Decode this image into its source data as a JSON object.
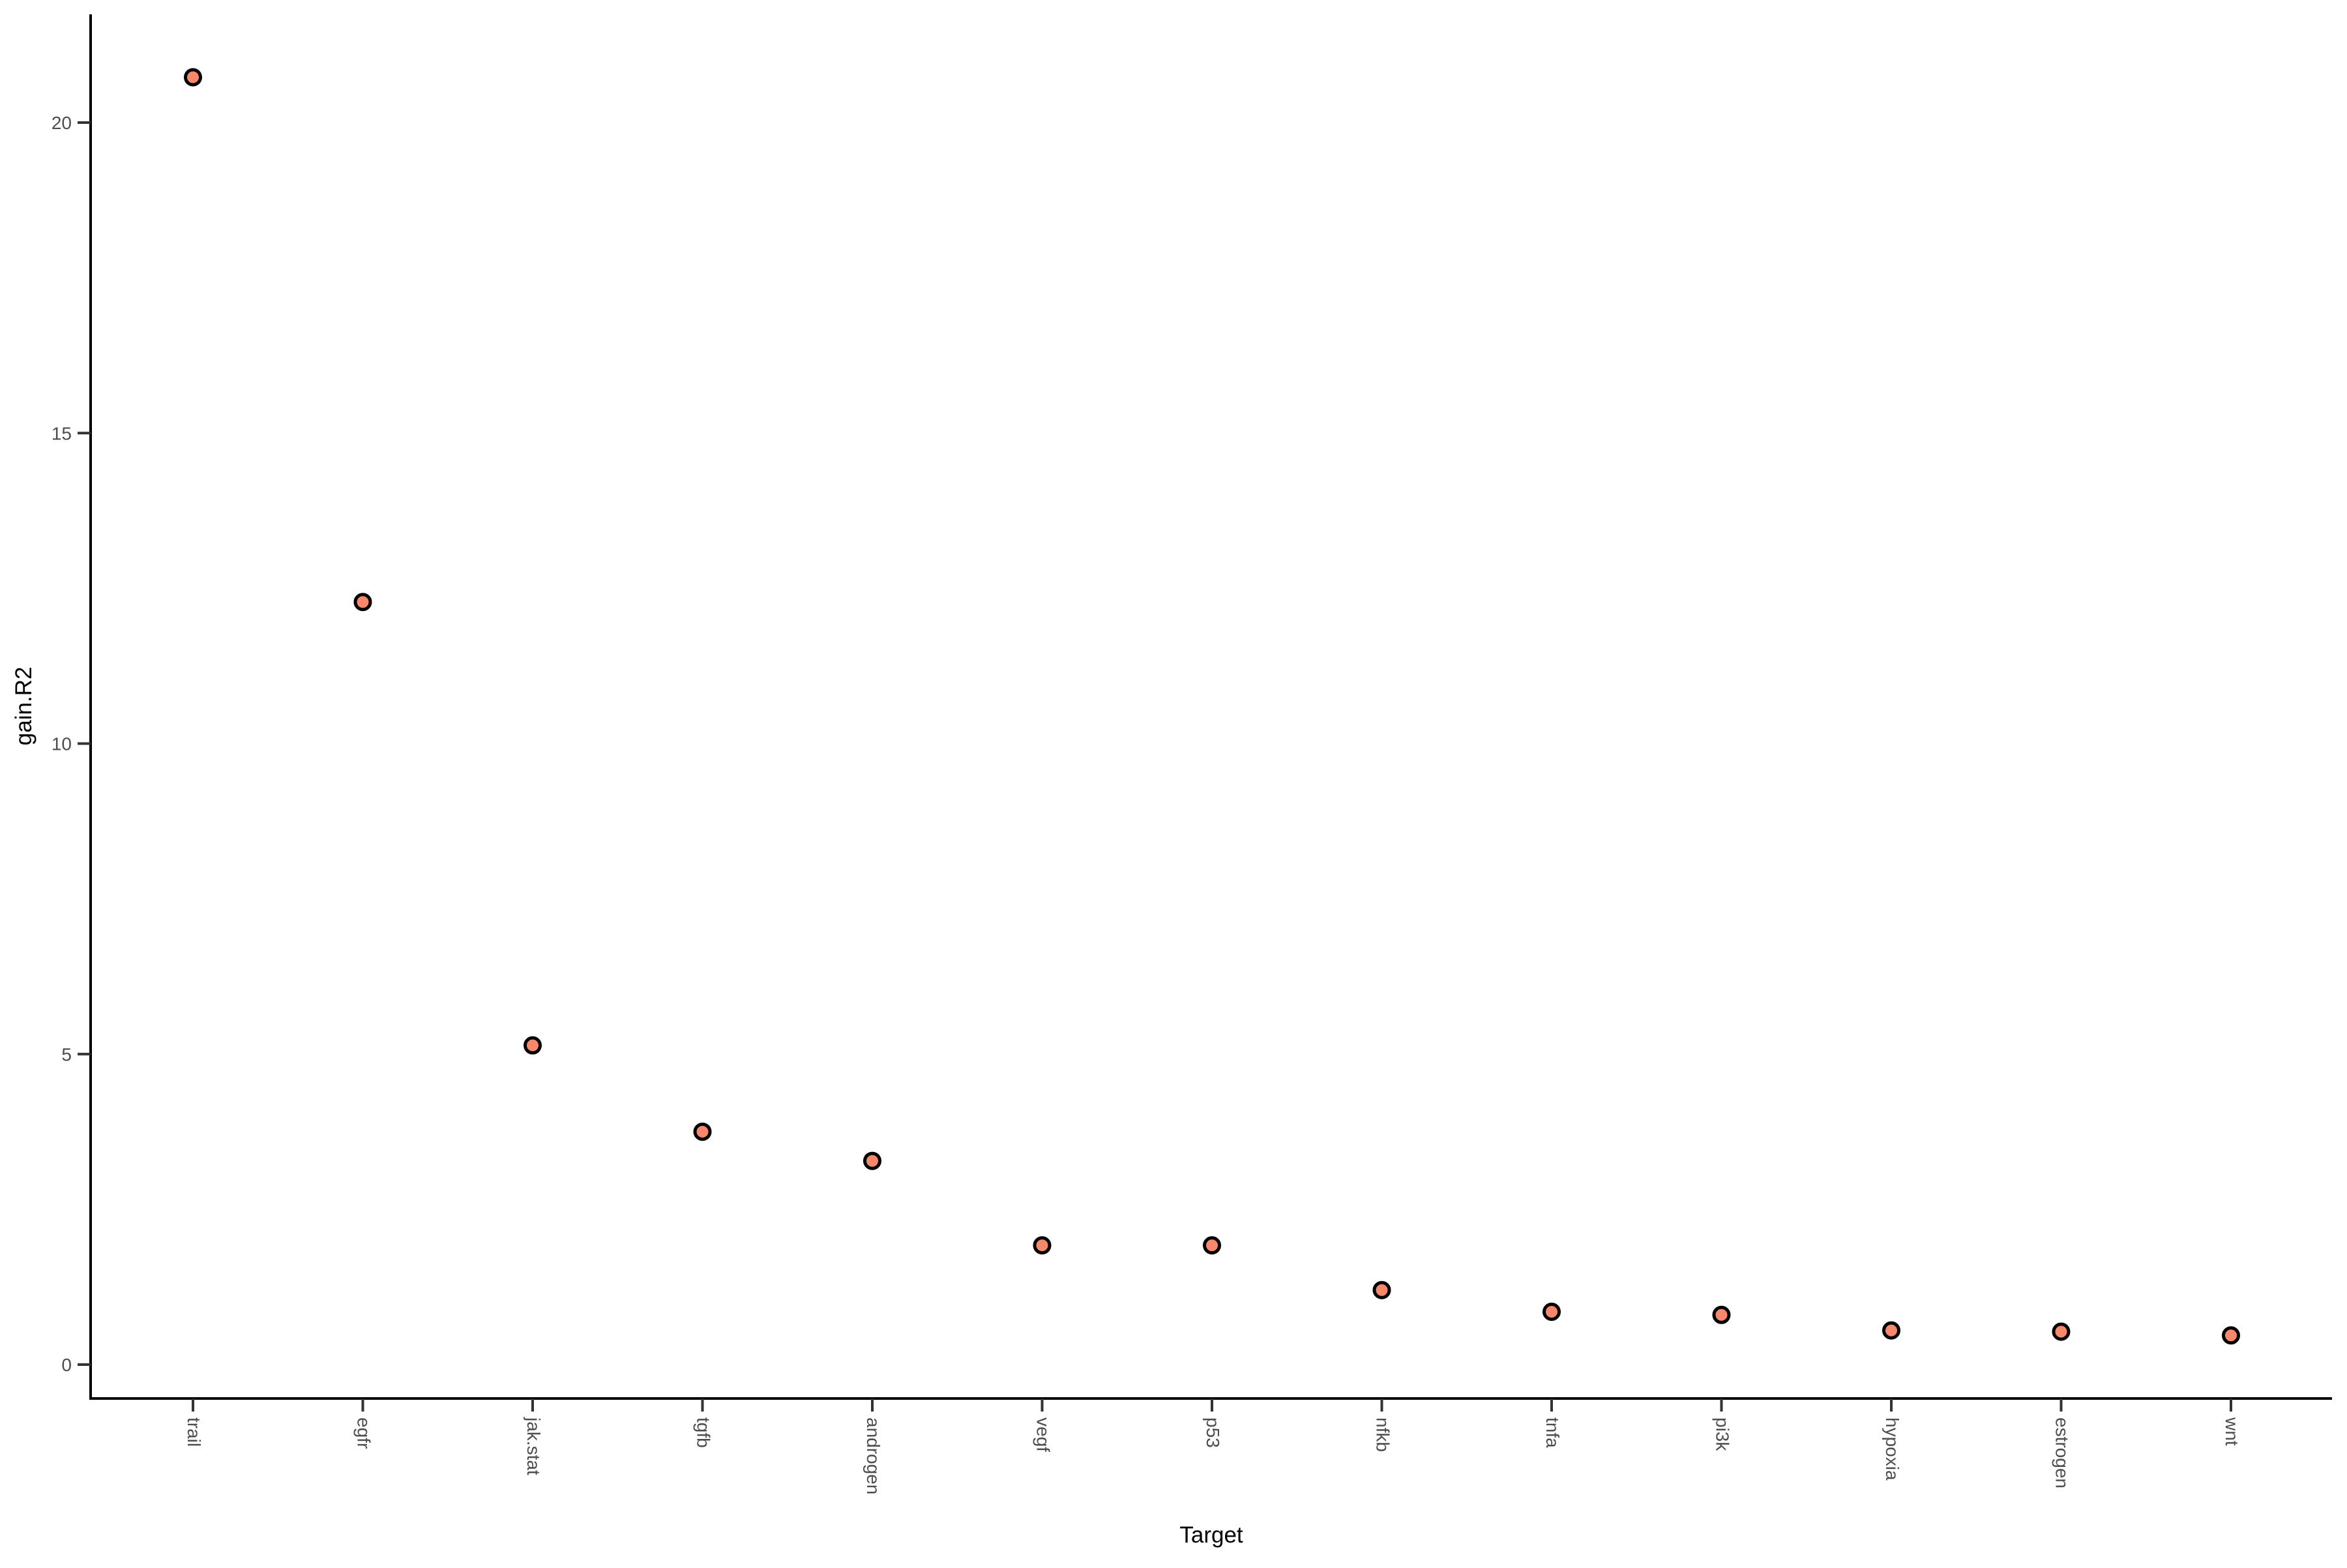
{
  "chart_data": {
    "type": "scatter",
    "title": "",
    "xlabel": "Target",
    "ylabel": "gain.R2",
    "categories": [
      "trail",
      "egfr",
      "jak.stat",
      "tgfb",
      "androgen",
      "vegf",
      "p53",
      "nfkb",
      "tnfa",
      "pi3k",
      "hypoxia",
      "estrogen",
      "wnt"
    ],
    "values": [
      20.73,
      12.28,
      5.14,
      3.75,
      3.28,
      1.92,
      1.92,
      1.2,
      0.85,
      0.8,
      0.55,
      0.53,
      0.47
    ],
    "y_ticks": [
      0,
      5,
      10,
      15,
      20
    ],
    "ylim": [
      -0.6,
      21.8
    ],
    "grid": "off",
    "legend": "none",
    "x_tick_label_rotation_deg": 90,
    "point_shape": "circle-filled-outlined"
  },
  "colors": {
    "background": "#FFFFFF",
    "axis_line": "#000000",
    "tick_mark": "#333333",
    "tick_label": "#4D4D4D",
    "axis_title": "#000000",
    "point_fill": "#F8886B",
    "point_stroke": "#000000"
  }
}
